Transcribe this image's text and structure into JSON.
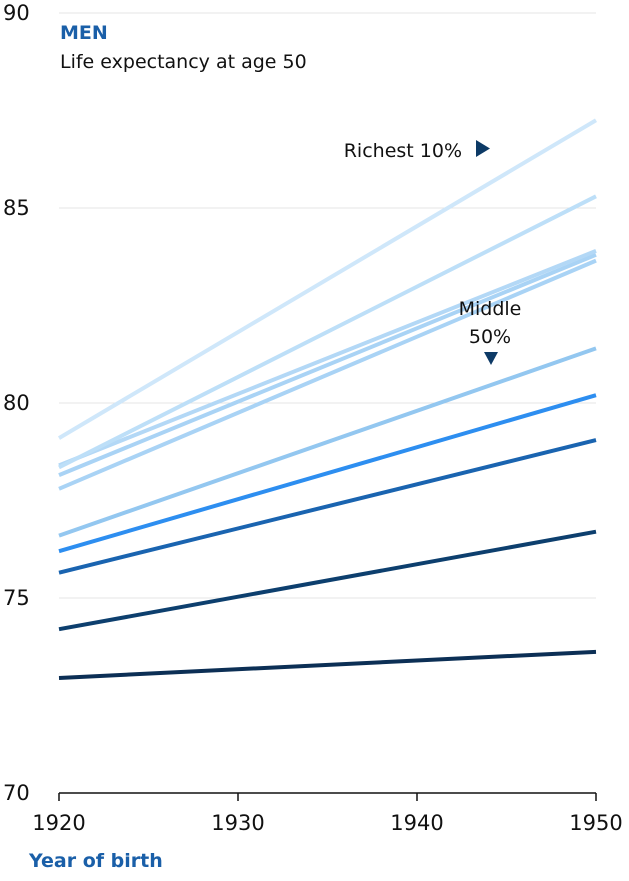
{
  "chart_data": {
    "type": "line",
    "title": "MEN",
    "subtitle": "Life expectancy at age 50",
    "xlabel": "Year of birth",
    "ylabel": "",
    "xlim": [
      1920,
      1950
    ],
    "ylim": [
      70,
      90
    ],
    "x_ticks": [
      1920,
      1930,
      1940,
      1950
    ],
    "y_ticks": [
      70,
      75,
      80,
      85,
      90
    ],
    "grid": "horizontal",
    "legend": "none",
    "x": [
      1920,
      1950
    ],
    "series": [
      {
        "values": [
          72.95,
          73.62
        ],
        "color": "#0c2f55"
      },
      {
        "values": [
          74.2,
          76.7
        ],
        "color": "#0d3f6e"
      },
      {
        "values": [
          75.65,
          79.05
        ],
        "color": "#1a64b0"
      },
      {
        "values": [
          76.2,
          80.2
        ],
        "color": "#2d8ef0"
      },
      {
        "values": [
          76.6,
          81.4
        ],
        "color": "#93c7f0"
      },
      {
        "values": [
          77.8,
          83.65
        ],
        "color": "#a9d3f5"
      },
      {
        "values": [
          78.15,
          83.8
        ],
        "color": "#a9d3f5"
      },
      {
        "values": [
          78.4,
          83.9
        ],
        "color": "#b3d8f6"
      },
      {
        "values": [
          78.35,
          85.3
        ],
        "color": "#bddff8"
      },
      {
        "values": [
          79.1,
          87.25
        ],
        "color": "#cfe7fa"
      }
    ],
    "annotations": [
      {
        "text": "Richest 10%",
        "marker": "right-triangle"
      },
      {
        "lines": [
          "Middle",
          "50%"
        ],
        "marker": "down-triangle"
      }
    ]
  },
  "colors": {
    "accent": "#1a5fa8",
    "marker": "#0d3a66",
    "grid": "#e4e4e4"
  }
}
